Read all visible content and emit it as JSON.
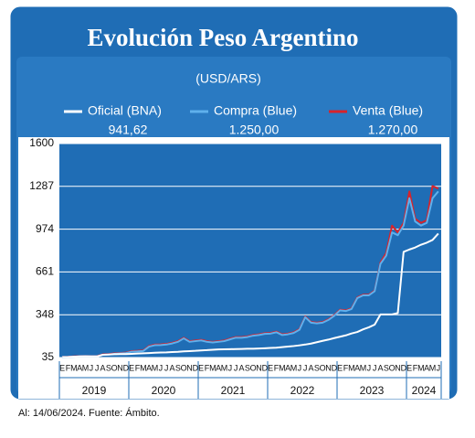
{
  "chart_data": {
    "type": "line",
    "title": "Evolución Peso Argentino",
    "subtitle": "(USD/ARS)",
    "source": "Al: 14/06/2024. Fuente: Ámbito.",
    "categories": [
      "E",
      "F",
      "M",
      "A",
      "M",
      "J",
      "J",
      "A",
      "S",
      "O",
      "N",
      "D",
      "E",
      "F",
      "M",
      "A",
      "M",
      "J",
      "J",
      "A",
      "S",
      "O",
      "N",
      "D",
      "E",
      "F",
      "M",
      "A",
      "M",
      "J",
      "J",
      "A",
      "S",
      "O",
      "N",
      "D",
      "E",
      "F",
      "M",
      "A",
      "M",
      "J",
      "J",
      "A",
      "S",
      "O",
      "N",
      "D",
      "E",
      "F",
      "M",
      "A",
      "M",
      "J",
      "J",
      "A",
      "S",
      "O",
      "N",
      "D",
      "E",
      "F",
      "M",
      "A",
      "M",
      "J"
    ],
    "year_labels": [
      "2019",
      "2020",
      "2021",
      "2022",
      "2023",
      "2024"
    ],
    "series": [
      {
        "name": "Oficial (BNA)",
        "color": "#ffffff",
        "latest": {
          "value": 941.62,
          "label": "941,62"
        },
        "values": [
          38,
          39,
          41,
          43,
          44,
          43,
          43,
          55,
          57,
          59,
          60,
          60,
          62,
          64,
          66,
          68,
          70,
          72,
          73,
          75,
          77,
          80,
          82,
          84,
          87,
          89,
          92,
          94,
          95,
          96,
          97,
          98,
          99,
          99,
          101,
          103,
          105,
          107,
          111,
          115,
          119,
          124,
          130,
          137,
          147,
          157,
          166,
          177,
          187,
          197,
          211,
          222,
          241,
          256,
          276,
          350,
          350,
          350,
          360,
          808,
          825,
          840,
          860,
          875,
          895,
          941.62
        ]
      },
      {
        "name": "Compra (Blue)",
        "color": "#5fb0ec",
        "latest": {
          "value": 1250,
          "label": "1.250,00"
        },
        "values": [
          37,
          38,
          41,
          43,
          44,
          43,
          43,
          55,
          57,
          62,
          65,
          68,
          78,
          80,
          83,
          115,
          125,
          126,
          130,
          138,
          150,
          175,
          150,
          155,
          160,
          150,
          145,
          150,
          155,
          168,
          180,
          180,
          185,
          195,
          200,
          208,
          210,
          220,
          200,
          205,
          215,
          238,
          330,
          290,
          285,
          290,
          310,
          340,
          380,
          375,
          390,
          470,
          490,
          490,
          520,
          720,
          780,
          950,
          930,
          1000,
          1200,
          1030,
          1000,
          1020,
          1200,
          1250
        ]
      },
      {
        "name": "Venta (Blue)",
        "color": "#d8232a",
        "latest": {
          "value": 1270,
          "label": "1.270,00"
        },
        "values": [
          39,
          40,
          43,
          45,
          46,
          45,
          45,
          58,
          60,
          65,
          68,
          71,
          82,
          84,
          87,
          120,
          130,
          131,
          135,
          143,
          155,
          180,
          155,
          160,
          165,
          155,
          150,
          155,
          160,
          173,
          185,
          185,
          190,
          200,
          205,
          213,
          215,
          225,
          205,
          210,
          220,
          243,
          335,
          295,
          290,
          295,
          315,
          345,
          385,
          380,
          395,
          475,
          495,
          495,
          525,
          730,
          800,
          1000,
          950,
          1020,
          1250,
          1050,
          1020,
          1040,
          1290,
          1270
        ]
      }
    ],
    "ylim": [
      35,
      1600
    ],
    "yticks": [
      35,
      348,
      661,
      974,
      1287,
      1600
    ],
    "grid": true
  }
}
